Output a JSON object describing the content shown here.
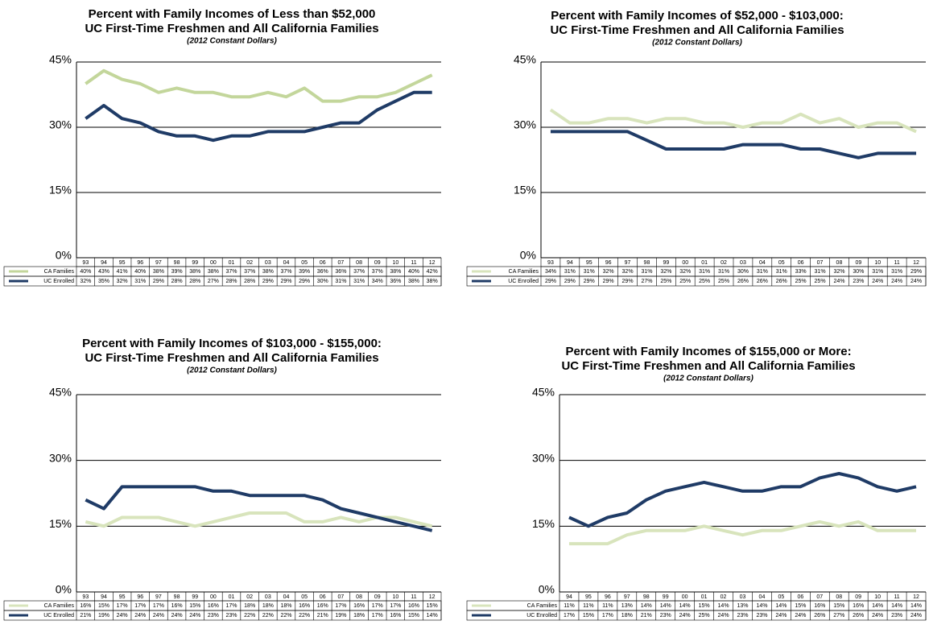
{
  "chart_data": [
    {
      "type": "line",
      "title": "Percent with Family Incomes of Less than $52,000",
      "subtitle": "UC First-Time Freshmen and All California Families",
      "note": "(2012 Constant Dollars)",
      "categories": [
        "93",
        "94",
        "95",
        "96",
        "97",
        "98",
        "99",
        "00",
        "01",
        "02",
        "03",
        "04",
        "05",
        "06",
        "07",
        "08",
        "09",
        "10",
        "11",
        "12"
      ],
      "series": [
        {
          "name": "CA Families",
          "color": "#c3d69b",
          "values": [
            40,
            43,
            41,
            40,
            38,
            39,
            38,
            38,
            37,
            37,
            38,
            37,
            39,
            36,
            36,
            37,
            37,
            38,
            40,
            42
          ],
          "value_labels": [
            "40%",
            "43%",
            "41%",
            "40%",
            "38%",
            "39%",
            "38%",
            "38%",
            "37%",
            "37%",
            "38%",
            "37%",
            "39%",
            "36%",
            "36%",
            "37%",
            "37%",
            "38%",
            "40%",
            "42%"
          ]
        },
        {
          "name": "UC Enrolled",
          "color": "#1f3b66",
          "values": [
            32,
            35,
            32,
            31,
            29,
            28,
            28,
            27,
            28,
            28,
            29,
            29,
            29,
            30,
            31,
            31,
            34,
            36,
            38,
            38
          ],
          "value_labels": [
            "32%",
            "35%",
            "32%",
            "31%",
            "29%",
            "28%",
            "28%",
            "27%",
            "28%",
            "28%",
            "29%",
            "29%",
            "29%",
            "30%",
            "31%",
            "31%",
            "34%",
            "36%",
            "38%",
            "38%"
          ]
        }
      ],
      "ylim": [
        0,
        45
      ],
      "yticks": [
        {
          "value": 0,
          "label": "0%"
        },
        {
          "value": 15,
          "label": "15%"
        },
        {
          "value": 30,
          "label": "30%"
        },
        {
          "value": 45,
          "label": "45%"
        }
      ],
      "grid": true
    },
    {
      "type": "line",
      "title": "Percent with Family Incomes of $52,000 - $103,000:",
      "subtitle": "UC First-Time Freshmen and All California Families",
      "note": "(2012 Constant Dollars)",
      "categories": [
        "93",
        "94",
        "95",
        "96",
        "97",
        "98",
        "99",
        "00",
        "01",
        "02",
        "03",
        "04",
        "05",
        "06",
        "07",
        "08",
        "09",
        "10",
        "11",
        "12"
      ],
      "series": [
        {
          "name": "CA Families",
          "color": "#d8e4bc",
          "values": [
            34,
            31,
            31,
            32,
            32,
            31,
            32,
            32,
            31,
            31,
            30,
            31,
            31,
            33,
            31,
            32,
            30,
            31,
            31,
            29
          ],
          "value_labels": [
            "34%",
            "31%",
            "31%",
            "32%",
            "32%",
            "31%",
            "32%",
            "32%",
            "31%",
            "31%",
            "30%",
            "31%",
            "31%",
            "33%",
            "31%",
            "32%",
            "30%",
            "31%",
            "31%",
            "29%"
          ]
        },
        {
          "name": "UC Enrolled",
          "color": "#1f3b66",
          "values": [
            29,
            29,
            29,
            29,
            29,
            27,
            25,
            25,
            25,
            25,
            26,
            26,
            26,
            25,
            25,
            24,
            23,
            24,
            24,
            24
          ],
          "value_labels": [
            "29%",
            "29%",
            "29%",
            "29%",
            "29%",
            "27%",
            "25%",
            "25%",
            "25%",
            "25%",
            "26%",
            "26%",
            "26%",
            "25%",
            "25%",
            "24%",
            "23%",
            "24%",
            "24%",
            "24%"
          ]
        }
      ],
      "ylim": [
        0,
        45
      ],
      "yticks": [
        {
          "value": 0,
          "label": "0%"
        },
        {
          "value": 15,
          "label": "15%"
        },
        {
          "value": 30,
          "label": "30%"
        },
        {
          "value": 45,
          "label": "45%"
        }
      ],
      "grid": true
    },
    {
      "type": "line",
      "title": "Percent with Family Incomes of $103,000 - $155,000:",
      "subtitle": "UC First-Time Freshmen and All California Families",
      "note": "(2012 Constant Dollars)",
      "categories": [
        "93",
        "94",
        "95",
        "96",
        "97",
        "98",
        "99",
        "00",
        "01",
        "02",
        "03",
        "04",
        "05",
        "06",
        "07",
        "08",
        "09",
        "10",
        "11",
        "12"
      ],
      "series": [
        {
          "name": "CA Families",
          "color": "#d8e4bc",
          "values": [
            16,
            15,
            17,
            17,
            17,
            16,
            15,
            16,
            17,
            18,
            18,
            18,
            16,
            16,
            17,
            16,
            17,
            17,
            16,
            15
          ],
          "value_labels": [
            "16%",
            "15%",
            "17%",
            "17%",
            "17%",
            "16%",
            "15%",
            "16%",
            "17%",
            "18%",
            "18%",
            "18%",
            "16%",
            "16%",
            "17%",
            "16%",
            "17%",
            "17%",
            "16%",
            "15%"
          ]
        },
        {
          "name": "UC Enrolled",
          "color": "#1f3b66",
          "values": [
            21,
            19,
            24,
            24,
            24,
            24,
            24,
            23,
            23,
            22,
            22,
            22,
            22,
            21,
            19,
            18,
            17,
            16,
            15,
            14
          ],
          "value_labels": [
            "21%",
            "19%",
            "24%",
            "24%",
            "24%",
            "24%",
            "24%",
            "23%",
            "23%",
            "22%",
            "22%",
            "22%",
            "22%",
            "21%",
            "19%",
            "18%",
            "17%",
            "16%",
            "15%",
            "14%"
          ]
        }
      ],
      "ylim": [
        0,
        45
      ],
      "yticks": [
        {
          "value": 0,
          "label": "0%"
        },
        {
          "value": 15,
          "label": "15%"
        },
        {
          "value": 30,
          "label": "30%"
        },
        {
          "value": 45,
          "label": "45%"
        }
      ],
      "grid": true
    },
    {
      "type": "line",
      "title": "Percent with Family Incomes of $155,000 or More:",
      "subtitle": "UC First-Time Freshmen and All California Families",
      "note": "(2012 Constant Dollars)",
      "categories": [
        "94",
        "95",
        "96",
        "97",
        "98",
        "99",
        "00",
        "01",
        "02",
        "03",
        "04",
        "05",
        "06",
        "07",
        "08",
        "09",
        "10",
        "11",
        "12"
      ],
      "series": [
        {
          "name": "CA Families",
          "color": "#d8e4bc",
          "values": [
            11,
            11,
            11,
            13,
            14,
            14,
            14,
            15,
            14,
            13,
            14,
            14,
            15,
            16,
            15,
            16,
            14,
            14,
            14
          ],
          "value_labels": [
            "11%",
            "11%",
            "11%",
            "13%",
            "14%",
            "14%",
            "14%",
            "15%",
            "14%",
            "13%",
            "14%",
            "14%",
            "15%",
            "16%",
            "15%",
            "16%",
            "14%",
            "14%",
            "14%"
          ]
        },
        {
          "name": "UC Enrolled",
          "color": "#1f3b66",
          "values": [
            17,
            15,
            17,
            18,
            21,
            23,
            24,
            25,
            24,
            23,
            23,
            24,
            24,
            26,
            27,
            26,
            24,
            23,
            24
          ],
          "value_labels": [
            "17%",
            "15%",
            "17%",
            "18%",
            "21%",
            "23%",
            "24%",
            "25%",
            "24%",
            "23%",
            "23%",
            "24%",
            "24%",
            "26%",
            "27%",
            "26%",
            "24%",
            "23%",
            "24%"
          ]
        }
      ],
      "ylim": [
        0,
        45
      ],
      "yticks": [
        {
          "value": 0,
          "label": "0%"
        },
        {
          "value": 15,
          "label": "15%"
        },
        {
          "value": 30,
          "label": "30%"
        },
        {
          "value": 45,
          "label": "45%"
        }
      ],
      "grid": true
    }
  ]
}
